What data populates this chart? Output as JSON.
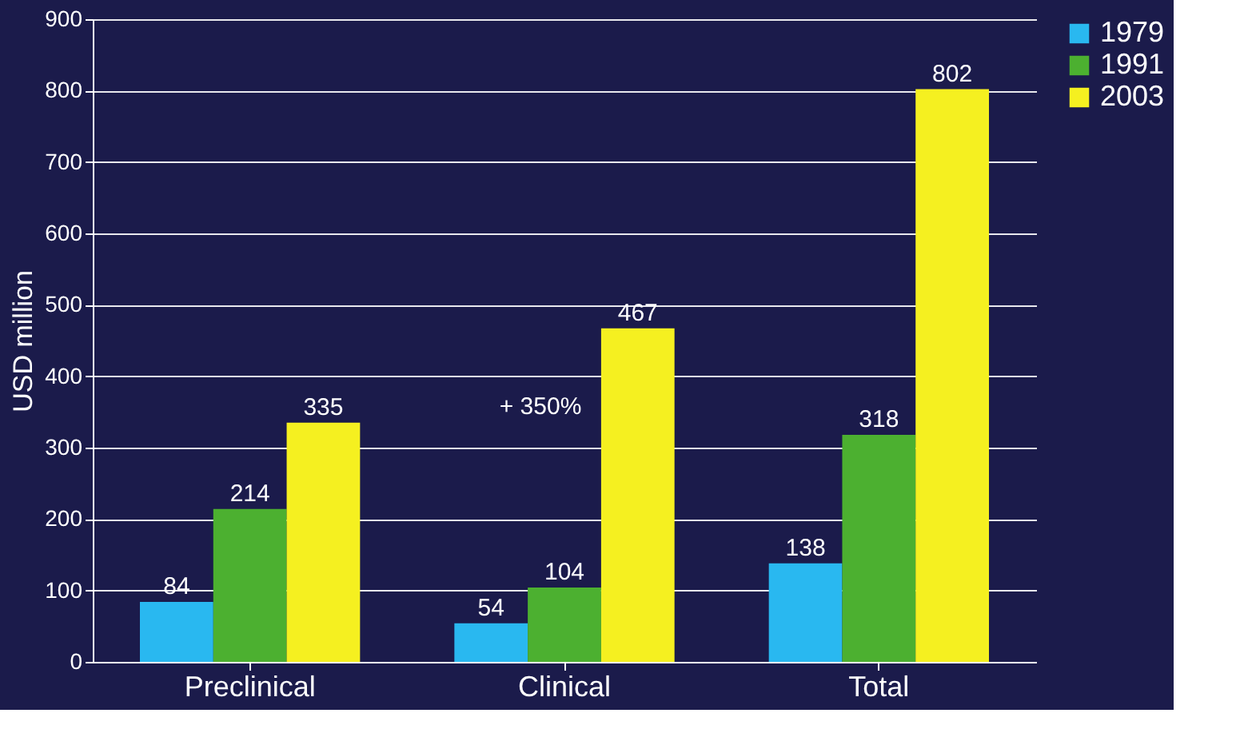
{
  "chart_data": {
    "type": "bar",
    "ylabel": "USD million",
    "categories": [
      "Preclinical",
      "Clinical",
      "Total"
    ],
    "series": [
      {
        "name": "1979",
        "color": "#29b8f0",
        "values": [
          84,
          54,
          138
        ]
      },
      {
        "name": "1991",
        "color": "#4cb030",
        "values": [
          214,
          104,
          318
        ]
      },
      {
        "name": "2003",
        "color": "#f5f020",
        "values": [
          335,
          467,
          802
        ]
      }
    ],
    "ylim": [
      0,
      900
    ],
    "yticks": [
      0,
      100,
      200,
      300,
      400,
      500,
      600,
      700,
      800,
      900
    ],
    "grid": "y",
    "legend": "right",
    "data_labels": true,
    "annotations": [
      "+ 350%"
    ]
  }
}
